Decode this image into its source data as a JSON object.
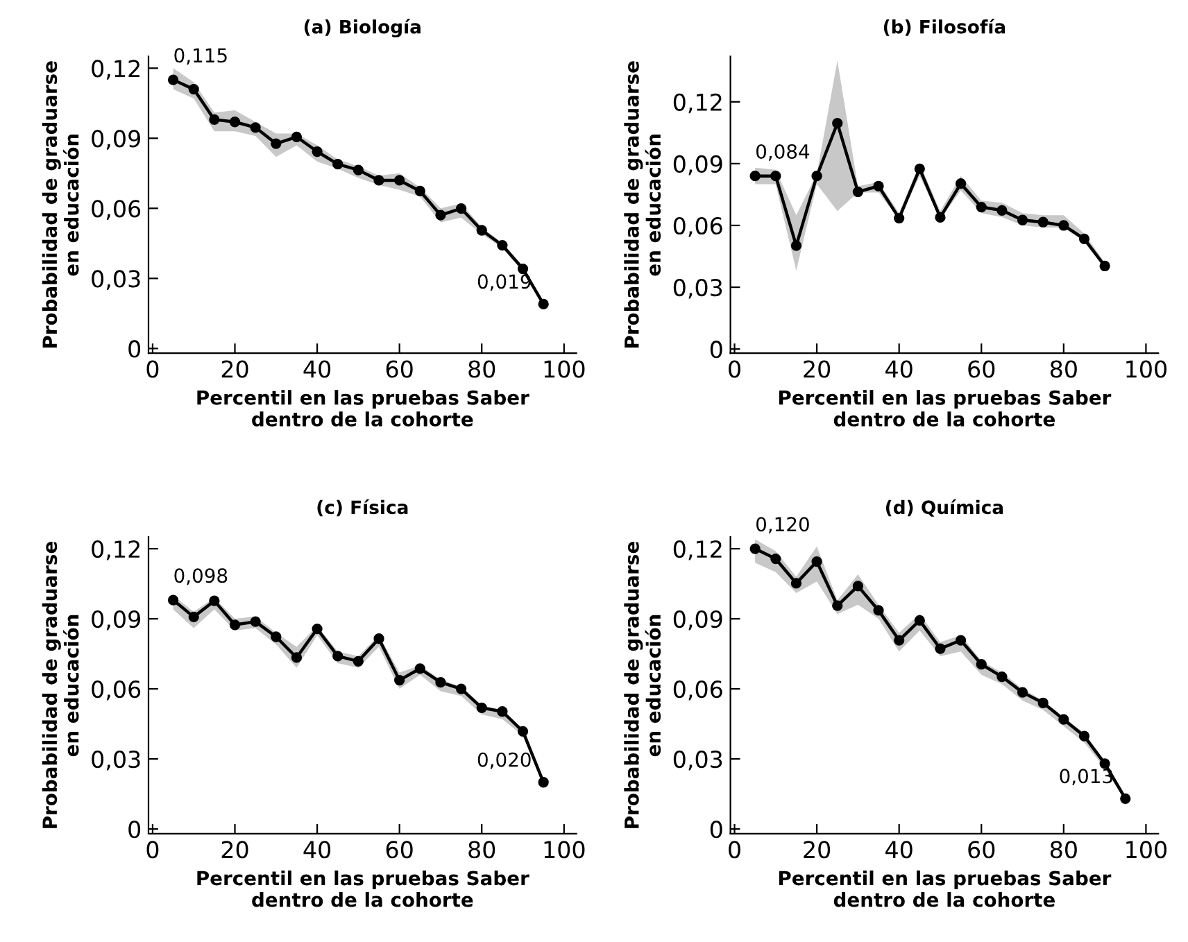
{
  "chart_data": [
    {
      "type": "line",
      "title": "(a) Biología",
      "xlabel": "Percentil en las pruebas Saber\ndentro de la cohorte",
      "ylabel": "Probabilidad de graduarse\nen educación",
      "marker": "circle",
      "line_style": "solid",
      "x": [
        5,
        10,
        15,
        20,
        25,
        30,
        35,
        40,
        45,
        50,
        55,
        60,
        65,
        70,
        75,
        80,
        85,
        90,
        95
      ],
      "series": [
        {
          "color": "#000000",
          "values": [
            0.115,
            0.111,
            0.098,
            0.097,
            0.0946,
            0.0877,
            0.0906,
            0.0843,
            0.0789,
            0.0764,
            0.072,
            0.072,
            0.0674,
            0.0571,
            0.0599,
            0.0506,
            0.0442,
            0.0341,
            0.019
          ],
          "value_labels": [
            "0,115",
            null,
            null,
            null,
            null,
            null,
            null,
            null,
            null,
            null,
            null,
            null,
            null,
            null,
            null,
            null,
            null,
            null,
            "0,019"
          ],
          "upper": [
            0.12,
            0.114,
            0.101,
            0.102,
            0.097,
            0.092,
            0.092,
            0.087,
            0.081,
            0.078,
            0.074,
            0.075,
            0.069,
            0.06,
            0.062,
            0.052,
            0.045,
            0.035,
            0.02
          ],
          "lower": [
            0.111,
            0.107,
            0.093,
            0.093,
            0.091,
            0.082,
            0.087,
            0.08,
            0.077,
            0.073,
            0.07,
            0.068,
            0.065,
            0.054,
            0.056,
            0.049,
            0.043,
            0.033,
            0.019
          ]
        }
      ],
      "xlim": [
        -1,
        103
      ],
      "ylim": [
        -0.002,
        0.125
      ],
      "xticks": [
        0,
        20,
        40,
        60,
        80,
        100
      ],
      "yticks": [
        0,
        {
          "value": 0.03,
          "label": "0,03"
        },
        {
          "value": 0.06,
          "label": "0,06"
        },
        {
          "value": 0.09,
          "label": "0,09"
        },
        {
          "value": 0.12,
          "label": "0,12"
        }
      ]
    },
    {
      "type": "line",
      "title": "(b) Filosofía",
      "xlabel": "Percentil en las pruebas Saber\ndentro de la cohorte",
      "ylabel": "Probabilidad de graduarse\nen educación",
      "marker": "circle",
      "line_style": "solid",
      "x": [
        5,
        10,
        15,
        20,
        25,
        30,
        35,
        40,
        45,
        50,
        55,
        60,
        65,
        70,
        75,
        80,
        85,
        90
      ],
      "series": [
        {
          "color": "#000000",
          "values": [
            0.084,
            0.084,
            0.0502,
            0.084,
            0.1096,
            0.0763,
            0.0791,
            0.0635,
            0.0875,
            0.0639,
            0.0803,
            0.0689,
            0.0673,
            0.0626,
            0.0616,
            0.06,
            0.0535,
            0.0403
          ],
          "value_labels": [
            "0,084",
            null,
            null,
            null,
            null,
            null,
            null,
            null,
            null,
            null,
            null,
            null,
            null,
            null,
            null,
            null,
            null,
            null
          ],
          "upper": [
            0.088,
            0.087,
            0.065,
            0.085,
            0.14,
            0.079,
            0.081,
            0.066,
            0.09,
            0.067,
            0.084,
            0.072,
            0.071,
            0.066,
            0.065,
            0.065,
            0.056,
            0.042
          ],
          "lower": [
            0.08,
            0.08,
            0.038,
            0.08,
            0.067,
            0.076,
            0.076,
            0.063,
            0.084,
            0.063,
            0.077,
            0.066,
            0.064,
            0.06,
            0.059,
            0.059,
            0.052,
            0.039
          ]
        }
      ],
      "xlim": [
        -1,
        103
      ],
      "ylim": [
        -0.002,
        0.142
      ],
      "xticks": [
        0,
        20,
        40,
        60,
        80,
        100
      ],
      "yticks": [
        0,
        {
          "value": 0.03,
          "label": "0,03"
        },
        {
          "value": 0.06,
          "label": "0,06"
        },
        {
          "value": 0.09,
          "label": "0,09"
        },
        {
          "value": 0.12,
          "label": "0,12"
        }
      ]
    },
    {
      "type": "line",
      "title": "(c) Física",
      "xlabel": "Percentil en las pruebas Saber\ndentro de la cohorte",
      "ylabel": "Probabilidad de graduarse\nen educación",
      "marker": "circle",
      "line_style": "solid",
      "x": [
        5,
        10,
        15,
        20,
        25,
        30,
        35,
        40,
        45,
        50,
        55,
        60,
        65,
        70,
        75,
        80,
        85,
        90,
        95
      ],
      "series": [
        {
          "color": "#000000",
          "values": [
            0.098,
            0.0908,
            0.0977,
            0.0874,
            0.0888,
            0.0823,
            0.0734,
            0.0857,
            0.074,
            0.0718,
            0.0815,
            0.0637,
            0.0687,
            0.0628,
            0.06,
            0.0519,
            0.0503,
            0.0418,
            0.02
          ],
          "value_labels": [
            "0,098",
            null,
            null,
            null,
            null,
            null,
            null,
            null,
            null,
            null,
            null,
            null,
            null,
            null,
            null,
            null,
            null,
            null,
            "0,020"
          ],
          "upper": [
            0.1,
            0.093,
            0.099,
            0.09,
            0.091,
            0.084,
            0.078,
            0.087,
            0.076,
            0.074,
            0.083,
            0.067,
            0.07,
            0.064,
            0.061,
            0.053,
            0.051,
            0.042,
            0.021
          ],
          "lower": [
            0.094,
            0.086,
            0.094,
            0.085,
            0.086,
            0.079,
            0.069,
            0.083,
            0.071,
            0.069,
            0.078,
            0.06,
            0.066,
            0.059,
            0.057,
            0.049,
            0.047,
            0.04,
            0.019
          ]
        }
      ],
      "xlim": [
        -1,
        103
      ],
      "ylim": [
        -0.002,
        0.125
      ],
      "xticks": [
        0,
        20,
        40,
        60,
        80,
        100
      ],
      "yticks": [
        0,
        {
          "value": 0.03,
          "label": "0,03"
        },
        {
          "value": 0.06,
          "label": "0,06"
        },
        {
          "value": 0.09,
          "label": "0,09"
        },
        {
          "value": 0.12,
          "label": "0,12"
        }
      ]
    },
    {
      "type": "line",
      "title": "(d) Química",
      "xlabel": "Percentil en las pruebas Saber\ndentro de la cohorte",
      "ylabel": "Probabilidad de graduarse\nen educación",
      "marker": "circle",
      "line_style": "solid",
      "x": [
        5,
        10,
        15,
        20,
        25,
        30,
        35,
        40,
        45,
        50,
        55,
        60,
        65,
        70,
        75,
        80,
        85,
        90,
        95
      ],
      "series": [
        {
          "color": "#000000",
          "values": [
            0.12,
            0.1157,
            0.1052,
            0.1145,
            0.0956,
            0.104,
            0.0936,
            0.0808,
            0.0893,
            0.0772,
            0.0808,
            0.0705,
            0.0652,
            0.0585,
            0.054,
            0.0469,
            0.0398,
            0.028,
            0.013
          ],
          "value_labels": [
            "0,120",
            null,
            null,
            null,
            null,
            null,
            null,
            null,
            null,
            null,
            null,
            null,
            null,
            null,
            null,
            null,
            null,
            null,
            "0,013"
          ],
          "upper": [
            0.124,
            0.119,
            0.108,
            0.121,
            0.098,
            0.109,
            0.096,
            0.084,
            0.092,
            0.08,
            0.083,
            0.072,
            0.067,
            0.06,
            0.055,
            0.048,
            0.041,
            0.029,
            0.014
          ],
          "lower": [
            0.114,
            0.11,
            0.101,
            0.106,
            0.092,
            0.096,
            0.09,
            0.076,
            0.085,
            0.074,
            0.076,
            0.066,
            0.062,
            0.055,
            0.051,
            0.044,
            0.037,
            0.026,
            0.012
          ]
        }
      ],
      "xlim": [
        -1,
        103
      ],
      "ylim": [
        -0.002,
        0.125
      ],
      "xticks": [
        0,
        20,
        40,
        60,
        80,
        100
      ],
      "yticks": [
        0,
        {
          "value": 0.03,
          "label": "0,03"
        },
        {
          "value": 0.06,
          "label": "0,06"
        },
        {
          "value": 0.09,
          "label": "0,09"
        },
        {
          "value": 0.12,
          "label": "0,12"
        }
      ]
    }
  ]
}
